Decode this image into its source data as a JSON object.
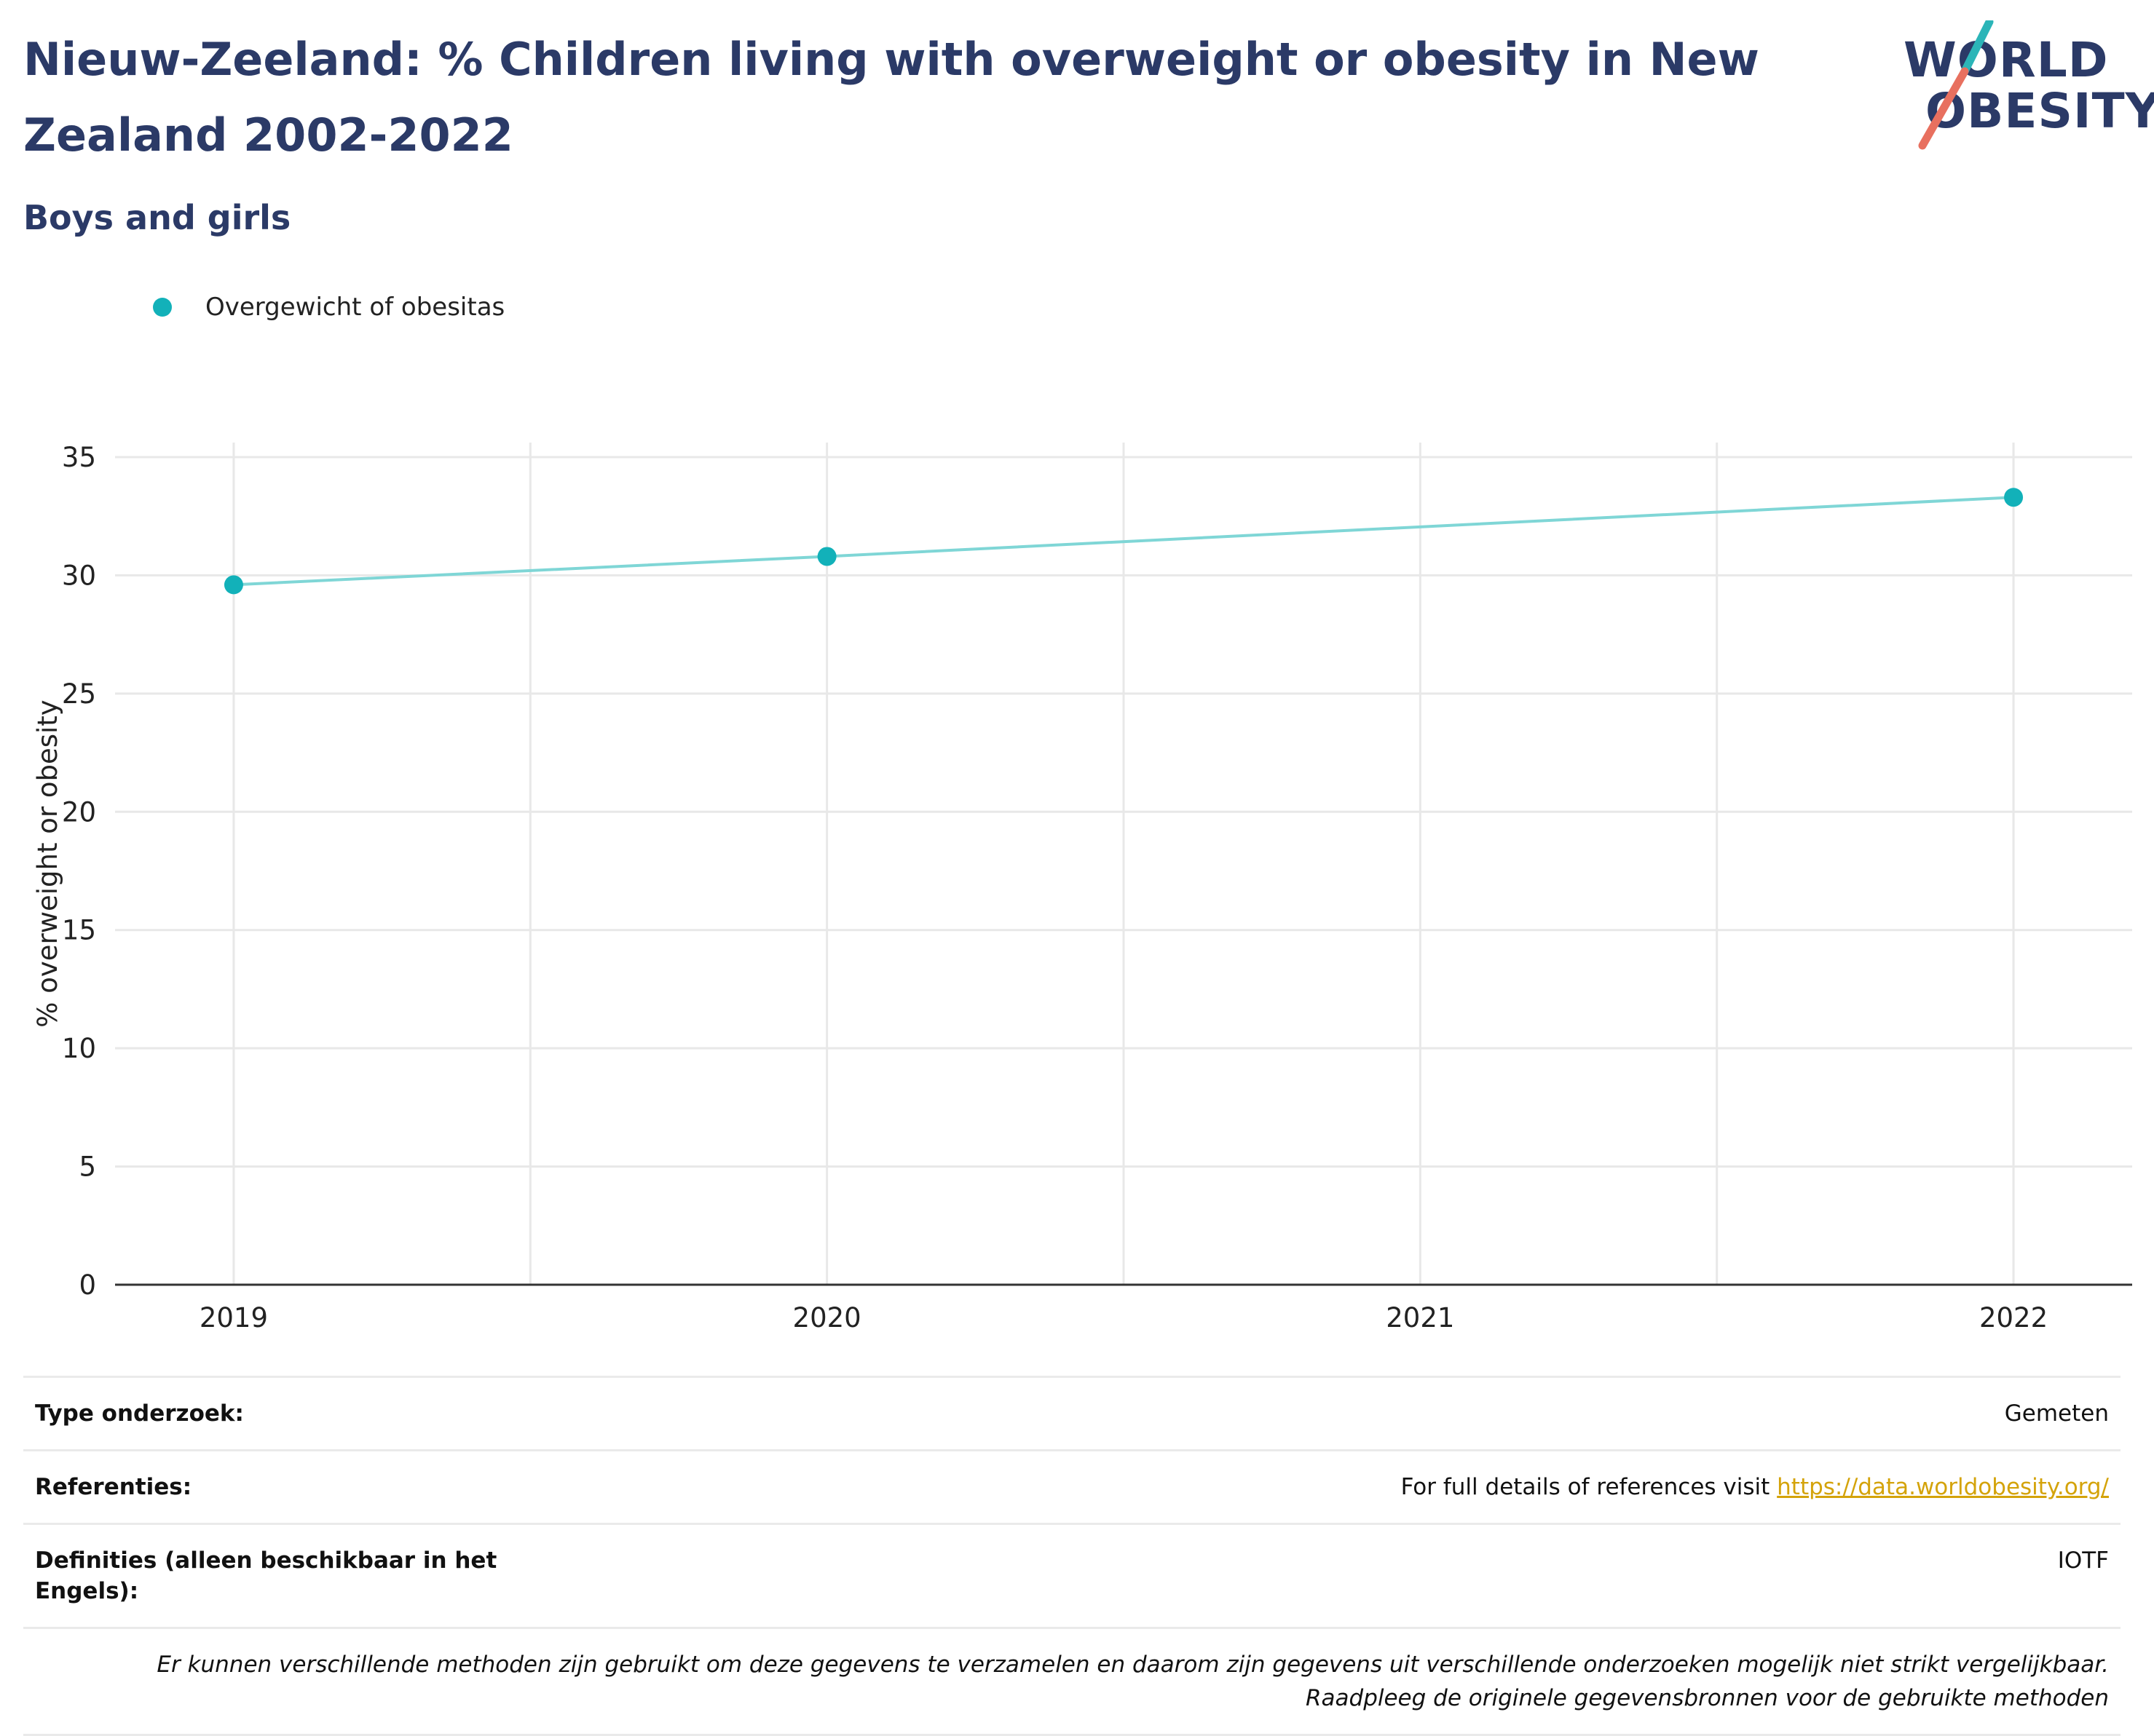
{
  "header": {
    "title": "Nieuw-Zeeland: % Children living with overweight or obesity in New Zealand 2002-2022",
    "subtitle": "Boys and girls"
  },
  "logo": {
    "line1": "WORLD",
    "line2": "OBESITY"
  },
  "colors": {
    "series": "#12b1b9",
    "series_line": "#7fd6d6",
    "title": "#2b3a67",
    "logo_teal": "#2bb5b8",
    "logo_red": "#e8705f",
    "link": "#d4a30a",
    "grid": "#e8e8e8"
  },
  "chart_data": {
    "type": "line",
    "title": "Nieuw-Zeeland: % Children living with overweight or obesity in New Zealand 2002-2022",
    "subtitle": "Boys and girls",
    "xlabel": "",
    "ylabel": "% overweight or obesity",
    "x": [
      2019,
      2020,
      2022
    ],
    "x_ticks": [
      "2019",
      "2020",
      "2021",
      "2022"
    ],
    "y_ticks": [
      "0",
      "5",
      "10",
      "15",
      "20",
      "25",
      "30",
      "35"
    ],
    "ylim": [
      0,
      35
    ],
    "xlim": [
      2018.8,
      2022.2
    ],
    "grid": true,
    "legend_position": "top-left",
    "series": [
      {
        "name": "Overgewicht of obesitas",
        "values": [
          29.6,
          30.8,
          33.3
        ]
      }
    ]
  },
  "meta": {
    "rows": [
      {
        "key": "Type onderzoek:",
        "value": "Gemeten"
      },
      {
        "key": "Referenties:",
        "value": "For full details of references visit ",
        "link": "https://data.worldobesity.org/"
      },
      {
        "key": "Definities (alleen beschikbaar in het Engels):",
        "value": "IOTF"
      }
    ],
    "note": "Er kunnen verschillende methoden zijn gebruikt om deze gegevens te verzamelen en daarom zijn gegevens uit verschillende onderzoeken mogelijk niet strikt vergelijkbaar. Raadpleeg de originele gegevensbronnen voor de gebruikte methoden"
  }
}
